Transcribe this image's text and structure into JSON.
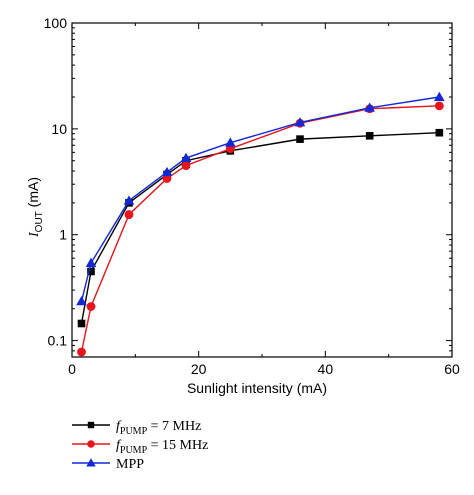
{
  "chart_data": {
    "type": "line",
    "xlabel": "Sunlight intensity (mA)",
    "ylabel_main": "I",
    "ylabel_sub": "OUT",
    "ylabel_unit": " (mA)",
    "xlim": [
      0,
      60
    ],
    "ylim": [
      0.07,
      100
    ],
    "y_scale": "log",
    "x_ticks": [
      0,
      20,
      40,
      60
    ],
    "x_tick_labels": [
      "0",
      "20",
      "40",
      "60"
    ],
    "y_ticks": [
      0.1,
      1,
      10,
      100
    ],
    "y_tick_labels": [
      "0.1",
      "1",
      "10",
      "100"
    ],
    "grid": false,
    "legend_position": "bottom-left",
    "series": [
      {
        "name_italic": "f",
        "name_sub": "PUMP",
        "name_rest": " = 7 MHz",
        "color": "#000000",
        "marker": "square",
        "x": [
          1.5,
          3,
          9,
          15,
          18,
          25,
          36,
          47,
          58
        ],
        "y": [
          0.145,
          0.45,
          2.0,
          3.7,
          5.0,
          6.2,
          8.0,
          8.6,
          9.2
        ]
      },
      {
        "name_italic": "f",
        "name_sub": "PUMP",
        "name_rest": " = 15 MHz",
        "color": "#e8141b",
        "marker": "circle",
        "x": [
          1.5,
          3,
          9,
          15,
          18,
          25,
          36,
          47,
          58
        ],
        "y": [
          0.078,
          0.21,
          1.55,
          3.4,
          4.5,
          6.5,
          11.3,
          15.5,
          16.5
        ]
      },
      {
        "name": "MPP",
        "color": "#1028d8",
        "marker": "triangle",
        "x": [
          1.5,
          3,
          9,
          15,
          18,
          25,
          36,
          47,
          58
        ],
        "y": [
          0.235,
          0.54,
          2.1,
          3.9,
          5.3,
          7.4,
          11.5,
          15.8,
          20.0
        ]
      }
    ]
  }
}
